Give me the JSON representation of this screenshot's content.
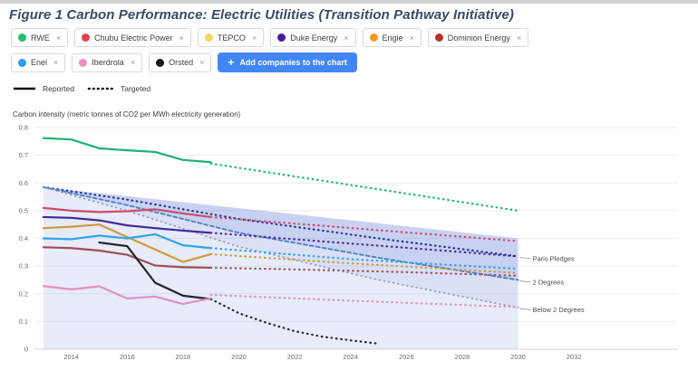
{
  "title": "Figure 1 Carbon Performance: Electric Utilities (Transition Pathway Initiative)",
  "ui": {
    "remove_symbol": "×",
    "plus_symbol": "+"
  },
  "add_button": {
    "label": "Add companies to the chart",
    "color": "#4286f5"
  },
  "legend": {
    "reported_label": "Reported",
    "targeted_label": "Targeted"
  },
  "chips": [
    {
      "label": "RWE",
      "color": "#22bd6a"
    },
    {
      "label": "Chubu Electric Power",
      "color": "#e0404e"
    },
    {
      "label": "TEPCO",
      "color": "#fbd45c"
    },
    {
      "label": "Duke Energy",
      "color": "#4a1a9e"
    },
    {
      "label": "Engie",
      "color": "#f59b1e"
    },
    {
      "label": "Dominion Energy",
      "color": "#b53326"
    },
    {
      "label": "Enel",
      "color": "#2d9ceb"
    },
    {
      "label": "Iberdrola",
      "color": "#ef8fc0"
    },
    {
      "label": "Orsted",
      "color": "#15181f"
    }
  ],
  "chart_data": {
    "type": "line",
    "title": "Carbon Performance: Electric Utilities",
    "ylabel": "Carbon intensity (metric tonnes of CO2 per MWh electricity generation)",
    "xlabel": "",
    "ylim": [
      0,
      0.8
    ],
    "xlim": [
      2012.8,
      2033
    ],
    "grid": "horizontal",
    "legend_position": "top-left",
    "x_ticks": [
      2014,
      2016,
      2018,
      2020,
      2022,
      2024,
      2026,
      2028,
      2030,
      2032
    ],
    "y_ticks": [
      0,
      0.1,
      0.2,
      0.3,
      0.4,
      0.5,
      0.6,
      0.7,
      0.8
    ],
    "y_tick_labels": [
      "0",
      "0.1",
      "0.2",
      "0.3",
      "0.4",
      "0.5",
      "0.6",
      "0.7",
      "0.8"
    ],
    "line_styles": {
      "reported": "solid",
      "targeted": "dotted"
    },
    "series": [
      {
        "name": "RWE",
        "color": "#1cb273",
        "reported": {
          "x": [
            2013,
            2014,
            2015,
            2016,
            2017,
            2018,
            2019
          ],
          "v": [
            0.762,
            0.757,
            0.725,
            0.718,
            0.712,
            0.683,
            0.675
          ]
        },
        "targeted": {
          "x": [
            2019,
            2030
          ],
          "v": [
            0.67,
            0.5
          ]
        }
      },
      {
        "name": "Chubu Electric Power",
        "color": "#c94e68",
        "reported": {
          "x": [
            2013,
            2014,
            2015,
            2016,
            2017,
            2018,
            2019
          ],
          "v": [
            0.51,
            0.5,
            0.495,
            0.498,
            0.505,
            0.49,
            0.477
          ]
        },
        "targeted": {
          "x": [
            2019,
            2030
          ],
          "v": [
            0.477,
            0.39
          ]
        }
      },
      {
        "name": "Duke Energy",
        "color": "#46289b",
        "reported": {
          "x": [
            2013,
            2014,
            2015,
            2016,
            2017,
            2018,
            2019
          ],
          "v": [
            0.477,
            0.474,
            0.465,
            0.447,
            0.437,
            0.428,
            0.42
          ]
        },
        "targeted": {
          "x": [
            2019,
            2030
          ],
          "v": [
            0.42,
            0.335
          ]
        }
      },
      {
        "name": "Engie",
        "color": "#cf9b3c",
        "reported": {
          "x": [
            2013,
            2014,
            2015,
            2016,
            2017,
            2018,
            2019
          ],
          "v": [
            0.437,
            0.442,
            0.45,
            0.405,
            0.36,
            0.315,
            0.343
          ]
        },
        "targeted": {
          "x": [
            2019,
            2024,
            2030
          ],
          "v": [
            0.343,
            0.31,
            0.275
          ]
        }
      },
      {
        "name": "Enel",
        "color": "#2fa3e8",
        "reported": {
          "x": [
            2013,
            2014,
            2015,
            2016,
            2017,
            2018,
            2019
          ],
          "v": [
            0.4,
            0.397,
            0.41,
            0.4,
            0.415,
            0.375,
            0.365
          ]
        },
        "targeted": {
          "x": [
            2019,
            2024,
            2030
          ],
          "v": [
            0.365,
            0.325,
            0.29
          ]
        }
      },
      {
        "name": "Dominion Energy",
        "color": "#9e4f52",
        "reported": {
          "x": [
            2013,
            2014,
            2015,
            2016,
            2017,
            2018,
            2019
          ],
          "v": [
            0.368,
            0.365,
            0.356,
            0.341,
            0.302,
            0.296,
            0.294
          ]
        },
        "targeted": {
          "x": [
            2019,
            2022,
            2026,
            2030
          ],
          "v": [
            0.294,
            0.288,
            0.278,
            0.265
          ]
        }
      },
      {
        "name": "Orsted",
        "color": "#20242e",
        "reported": {
          "x": [
            2015,
            2016,
            2017,
            2018,
            2019
          ],
          "v": [
            0.385,
            0.372,
            0.24,
            0.193,
            0.181
          ]
        },
        "targeted": {
          "x": [
            2019,
            2020,
            2021,
            2022,
            2023,
            2024,
            2025
          ],
          "v": [
            0.181,
            0.13,
            0.095,
            0.065,
            0.045,
            0.032,
            0.02
          ]
        }
      },
      {
        "name": "Iberdrola",
        "color": "#e18fc2",
        "reported": {
          "x": [
            2013,
            2014,
            2015,
            2016,
            2017,
            2018,
            2019
          ],
          "v": [
            0.228,
            0.216,
            0.227,
            0.183,
            0.19,
            0.163,
            0.184
          ]
        },
        "targeted": {
          "x": [
            2019,
            2024,
            2030
          ],
          "v": [
            0.196,
            0.175,
            0.152
          ]
        }
      }
    ],
    "benchmarks": [
      {
        "name": "Paris Pledges",
        "color": "#27348b",
        "dash": "0.6 4.6",
        "width": 2.2,
        "x": [
          2013,
          2016,
          2020,
          2025,
          2030
        ],
        "v": [
          0.585,
          0.54,
          0.47,
          0.4,
          0.335
        ]
      },
      {
        "name": "2 Degrees",
        "color": "#4a7fc1",
        "dash": "4 3",
        "width": 1.8,
        "x": [
          2013,
          2016,
          2020,
          2025,
          2030
        ],
        "v": [
          0.585,
          0.52,
          0.42,
          0.33,
          0.25
        ]
      },
      {
        "name": "Below 2 Degrees",
        "color": "#8e99b5",
        "dash": "0.6 4.6",
        "width": 1.8,
        "x": [
          2013,
          2016,
          2020,
          2025,
          2030
        ],
        "v": [
          0.585,
          0.5,
          0.37,
          0.25,
          0.15
        ]
      }
    ],
    "band": {
      "x_start": 2013,
      "x_end": 2030,
      "top_start": 0.585,
      "top_end": 0.4,
      "color": "#6a81e0",
      "base_opacity": 0.16,
      "mid_opacity": 0.1,
      "dark_opacity": 0.15
    }
  }
}
